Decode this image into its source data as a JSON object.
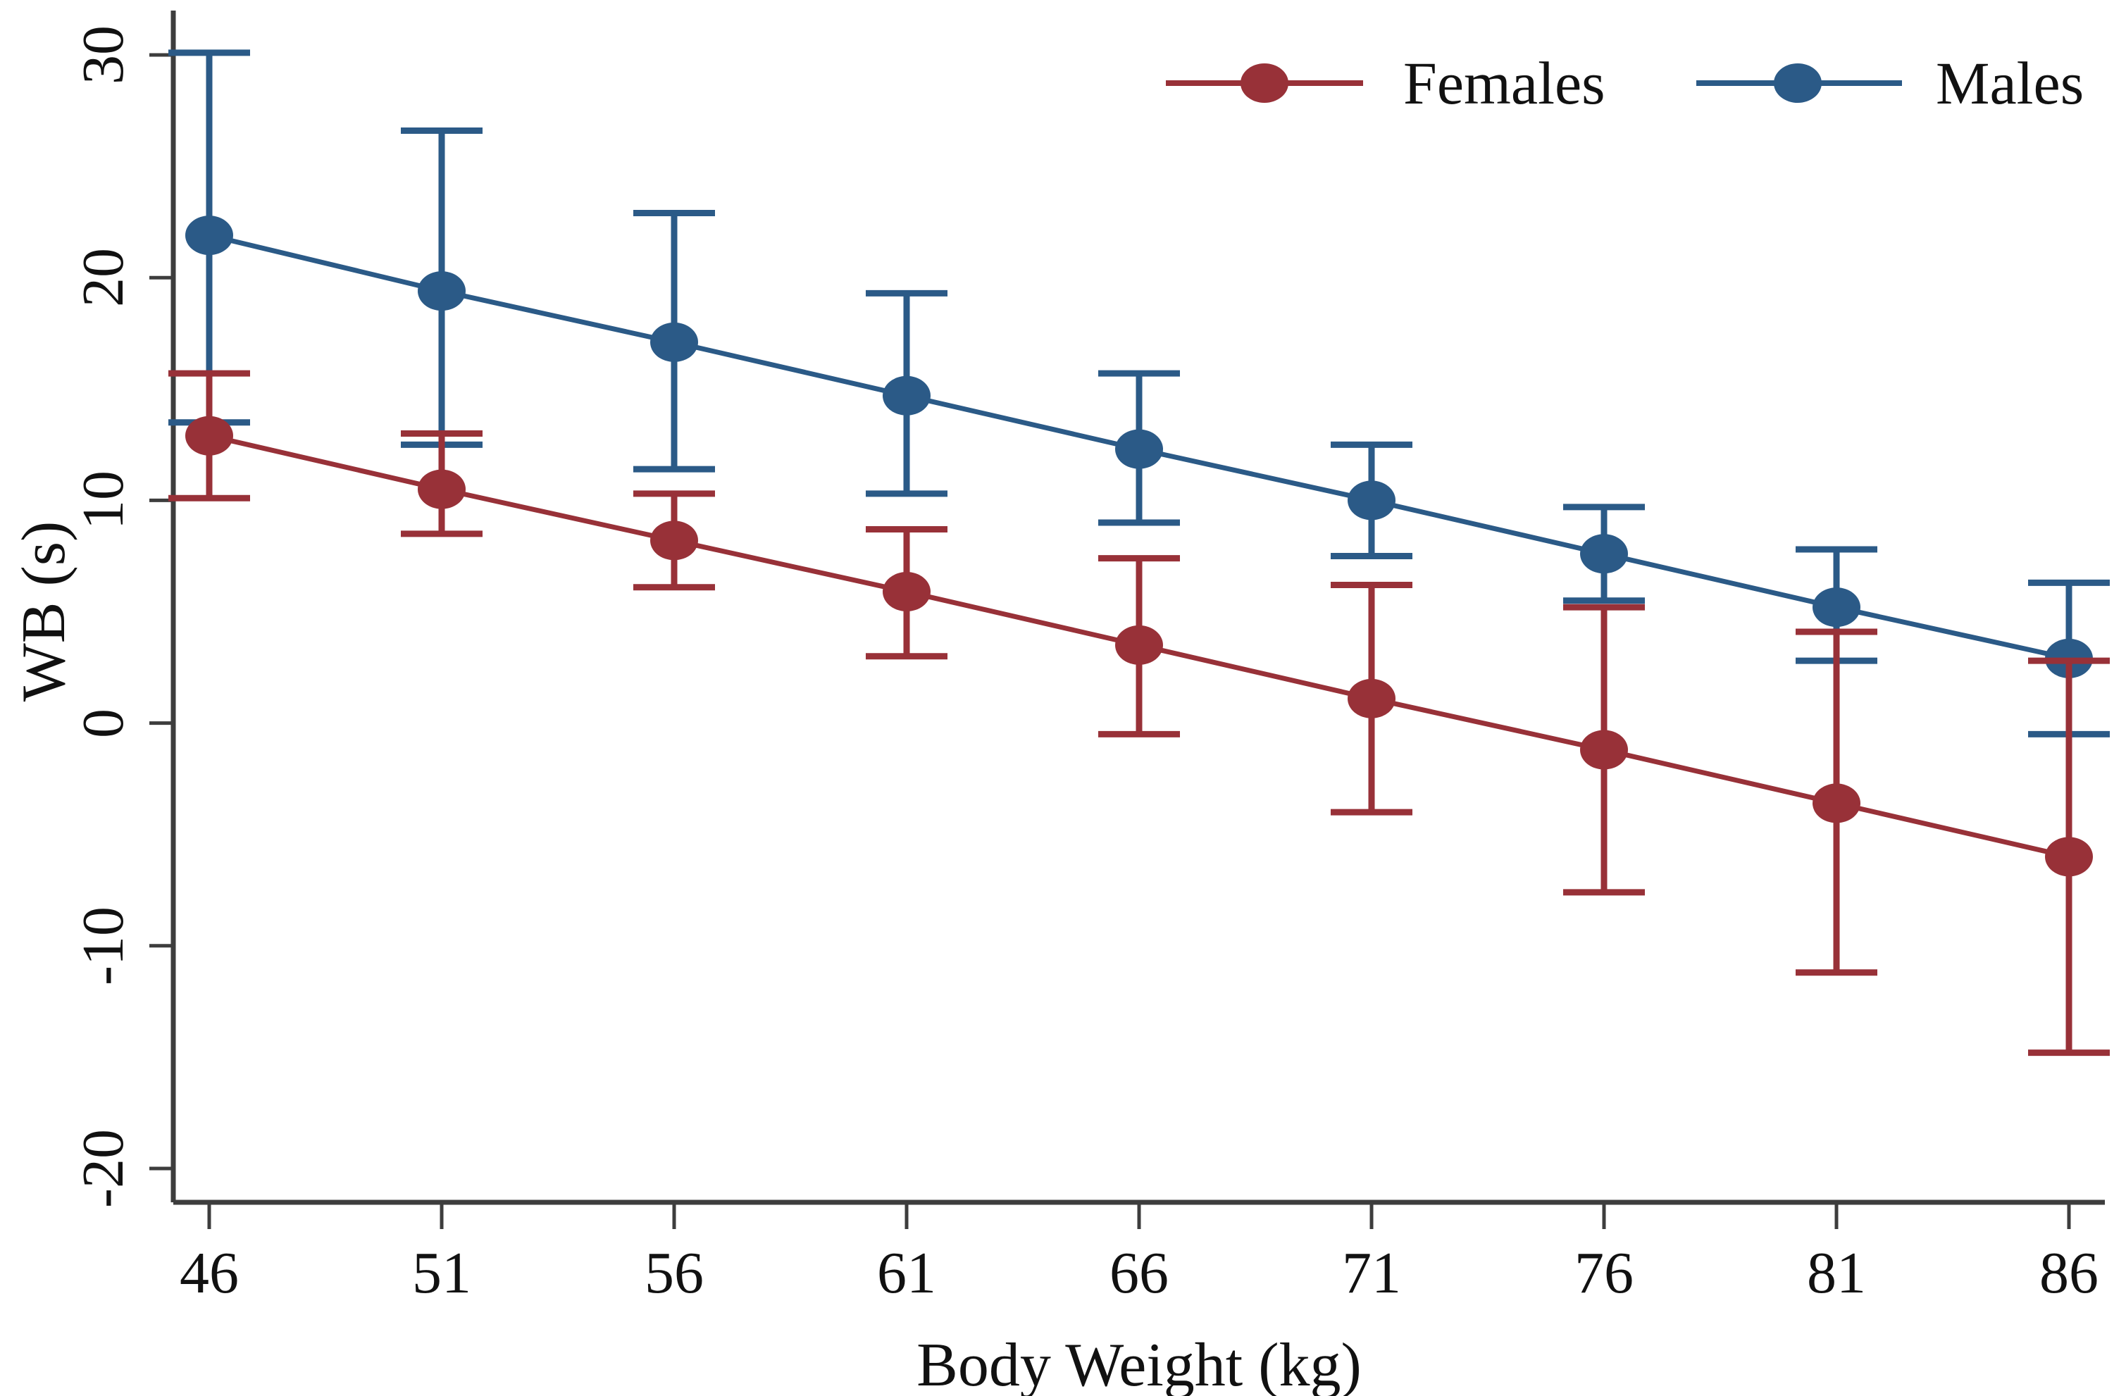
{
  "figure": {
    "background": "#ffffff",
    "axis_color": "#3d3d3d",
    "text_color": "#111111"
  },
  "chart_data": {
    "type": "line",
    "title": "",
    "xlabel": "Body Weight (kg)",
    "ylabel": "WB (s)",
    "x": [
      46,
      51,
      56,
      61,
      66,
      71,
      76,
      81,
      86
    ],
    "x_tick_labels": [
      "46",
      "51",
      "56",
      "61",
      "66",
      "71",
      "76",
      "81",
      "86"
    ],
    "y_ticks": [
      30,
      20,
      10,
      0,
      -10,
      -20
    ],
    "y_tick_labels": [
      "30",
      "20",
      "10",
      "0",
      "-10",
      "-20"
    ],
    "ylim": [
      -23,
      31.5
    ],
    "grid": false,
    "legend_position": "top-right",
    "error_bars": true,
    "series": [
      {
        "name": "Females",
        "color": "#983138",
        "values": [
          12.9,
          10.5,
          8.2,
          5.9,
          3.5,
          1.1,
          -1.2,
          -3.6,
          -6.0
        ],
        "ci_low": [
          10.1,
          8.5,
          6.1,
          3.0,
          -0.5,
          -4.0,
          -7.6,
          -11.2,
          -14.8
        ],
        "ci_high": [
          15.7,
          13.0,
          10.3,
          8.7,
          7.4,
          6.2,
          5.2,
          4.1,
          2.8
        ]
      },
      {
        "name": "Males",
        "color": "#2b5a87",
        "values": [
          21.9,
          19.4,
          17.1,
          14.7,
          12.3,
          10.0,
          7.6,
          5.2,
          2.9
        ],
        "ci_low": [
          13.5,
          12.5,
          11.4,
          10.3,
          9.0,
          7.5,
          5.5,
          2.8,
          -0.5
        ],
        "ci_high": [
          30.1,
          26.6,
          22.9,
          19.3,
          15.7,
          12.5,
          9.7,
          7.8,
          6.3
        ]
      }
    ]
  }
}
